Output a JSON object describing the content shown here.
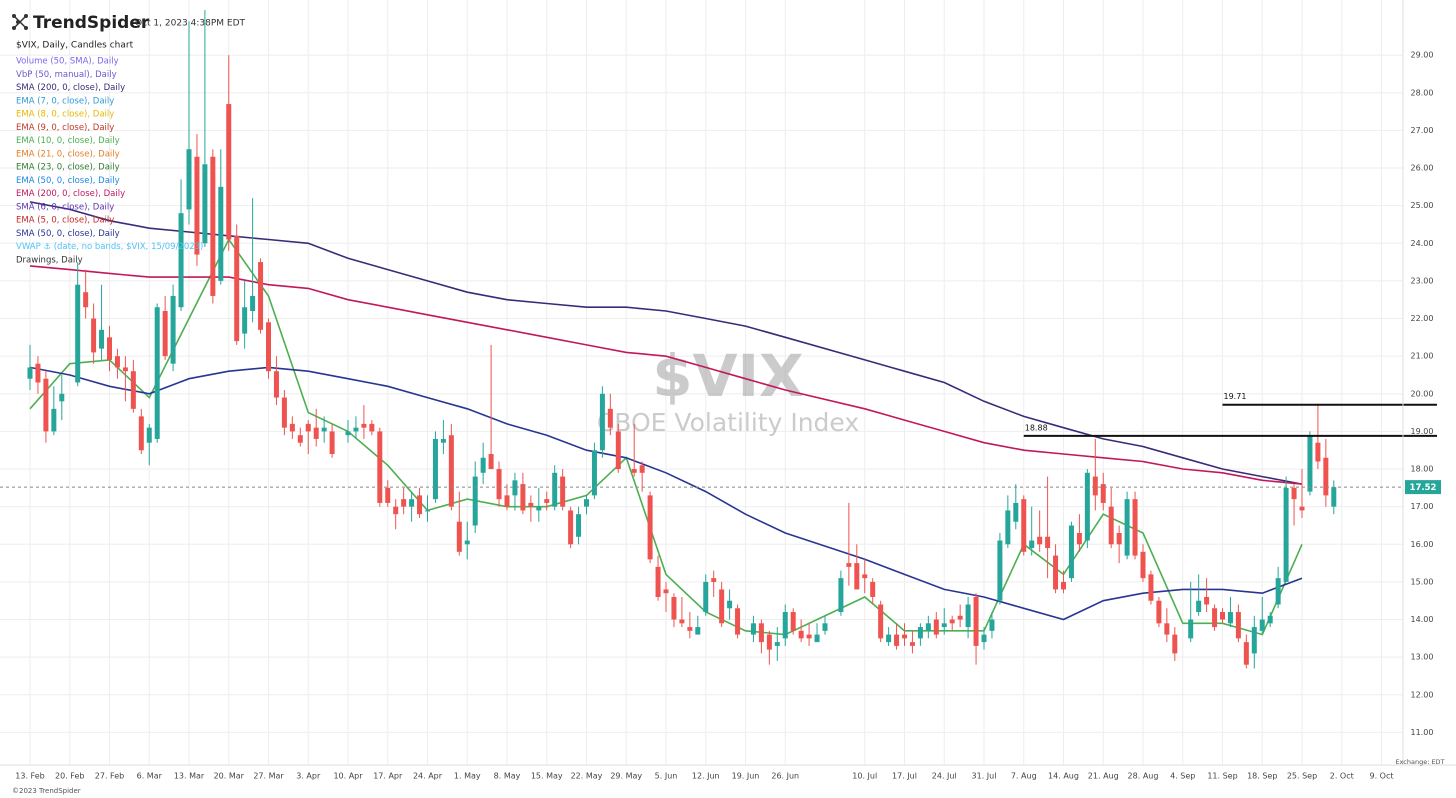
{
  "chart_data": {
    "type": "candlestick",
    "brand": "TrendSpider",
    "timestamp": "Oct 1, 2023 4:38PM EDT",
    "title": "$VIX, Daily, Candles chart",
    "watermark": "$VIX",
    "subtitle": "CBOE Volatility Index",
    "exchange": "Exchange: EDT",
    "copyright": "©2023 TrendSpider",
    "up_color": "#26a69a",
    "down_color": "#ef5350",
    "grid": true,
    "ylim": [
      10.4,
      30.2
    ],
    "yticks": [
      {
        "value": 11,
        "label": "11.00"
      },
      {
        "value": 12,
        "label": "12.00"
      },
      {
        "value": 13,
        "label": "13.00"
      },
      {
        "value": 14,
        "label": "14.00"
      },
      {
        "value": 15,
        "label": "15.00"
      },
      {
        "value": 16,
        "label": "16.00"
      },
      {
        "value": 17,
        "label": "17.00"
      },
      {
        "value": 18,
        "label": "18.00"
      },
      {
        "value": 19,
        "label": "19.00"
      },
      {
        "value": 20,
        "label": "20.00"
      },
      {
        "value": 21,
        "label": "21.00"
      },
      {
        "value": 22,
        "label": "22.00"
      },
      {
        "value": 23,
        "label": "23.00"
      },
      {
        "value": 24,
        "label": "24.00"
      },
      {
        "value": 25,
        "label": "25.00"
      },
      {
        "value": 26,
        "label": "26.00"
      },
      {
        "value": 27,
        "label": "27.00"
      },
      {
        "value": 28,
        "label": "28.00"
      },
      {
        "value": 29,
        "label": "29.00"
      }
    ],
    "last_price": 17.52,
    "hlines": [
      {
        "value": 18.88,
        "from": "7. Aug"
      },
      {
        "value": 19.71,
        "from": "11. Sep"
      }
    ],
    "categories": [
      "13. Feb",
      null,
      null,
      null,
      null,
      "20. Feb",
      null,
      null,
      null,
      null,
      "27. Feb",
      null,
      null,
      null,
      null,
      "6. Mar",
      null,
      null,
      null,
      null,
      "13. Mar",
      null,
      null,
      null,
      null,
      "20. Mar",
      null,
      null,
      null,
      null,
      "27. Mar",
      null,
      null,
      null,
      null,
      "3. Apr",
      null,
      null,
      null,
      null,
      "10. Apr",
      null,
      null,
      null,
      null,
      "17. Apr",
      null,
      null,
      null,
      null,
      "24. Apr",
      null,
      null,
      null,
      null,
      "1. May",
      null,
      null,
      null,
      null,
      "8. May",
      null,
      null,
      null,
      null,
      "15. May",
      null,
      null,
      null,
      null,
      "22. May",
      null,
      null,
      null,
      null,
      "29. May",
      null,
      null,
      null,
      null,
      "5. Jun",
      null,
      null,
      null,
      null,
      "12. Jun",
      null,
      null,
      null,
      null,
      "19. Jun",
      null,
      null,
      null,
      null,
      "26. Jun",
      null,
      null,
      null,
      null,
      null,
      null,
      null,
      null,
      null,
      "10. Jul",
      null,
      null,
      null,
      null,
      "17. Jul",
      null,
      null,
      null,
      null,
      "24. Jul",
      null,
      null,
      null,
      null,
      "31. Jul",
      null,
      null,
      null,
      null,
      "7. Aug",
      null,
      null,
      null,
      null,
      "14. Aug",
      null,
      null,
      null,
      null,
      "21. Aug",
      null,
      null,
      null,
      null,
      "28. Aug",
      null,
      null,
      null,
      null,
      "4. Sep",
      null,
      null,
      null,
      null,
      "11. Sep",
      null,
      null,
      null,
      null,
      "18. Sep",
      null,
      null,
      null,
      null,
      "25. Sep",
      null,
      null,
      null,
      null,
      "2. Oct",
      null,
      null,
      null,
      null,
      "9. Oct",
      null,
      null,
      null,
      null
    ],
    "ohlc": [
      [
        20.4,
        21.3,
        20.1,
        20.7
      ],
      [
        20.8,
        21.0,
        20.0,
        20.3
      ],
      [
        20.4,
        20.6,
        18.7,
        19.0
      ],
      [
        19.0,
        20.2,
        18.9,
        19.6
      ],
      [
        19.8,
        20.5,
        19.3,
        20.0
      ],
      null,
      [
        20.3,
        23.5,
        20.2,
        22.9
      ],
      [
        22.7,
        23.3,
        22.0,
        22.3
      ],
      [
        22.0,
        22.4,
        20.8,
        21.1
      ],
      [
        21.2,
        22.9,
        20.9,
        21.7
      ],
      [
        21.5,
        21.8,
        20.6,
        20.9
      ],
      [
        21.0,
        21.2,
        20.4,
        20.7
      ],
      [
        20.7,
        21.0,
        19.8,
        20.6
      ],
      [
        20.6,
        20.9,
        19.5,
        19.6
      ],
      [
        19.4,
        19.6,
        18.4,
        18.5
      ],
      [
        18.7,
        19.2,
        18.1,
        19.1
      ],
      [
        18.8,
        22.4,
        18.7,
        22.3
      ],
      [
        22.2,
        22.6,
        20.9,
        21.0
      ],
      [
        20.8,
        22.9,
        20.6,
        22.6
      ],
      [
        22.3,
        25.7,
        22.2,
        24.8
      ],
      [
        24.9,
        29.9,
        24.5,
        26.5
      ],
      [
        26.3,
        26.9,
        23.4,
        23.7
      ],
      [
        24.0,
        30.2,
        23.9,
        26.1
      ],
      [
        26.3,
        26.5,
        22.4,
        22.6
      ],
      [
        23.0,
        26.5,
        22.9,
        25.5
      ],
      [
        27.7,
        29.0,
        23.8,
        24.1
      ],
      [
        24.2,
        24.5,
        21.3,
        21.4
      ],
      [
        21.6,
        23.0,
        21.2,
        22.3
      ],
      [
        22.2,
        25.2,
        21.9,
        22.6
      ],
      [
        23.5,
        23.6,
        21.6,
        21.7
      ],
      [
        21.9,
        22.0,
        20.4,
        20.6
      ],
      [
        20.6,
        21.0,
        19.7,
        19.9
      ],
      [
        19.9,
        20.1,
        18.9,
        19.1
      ],
      [
        19.2,
        19.4,
        18.8,
        19.0
      ],
      [
        18.9,
        19.1,
        18.6,
        18.7
      ],
      [
        19.2,
        19.3,
        18.4,
        19.0
      ],
      [
        19.1,
        19.6,
        18.6,
        18.8
      ],
      [
        19.0,
        19.4,
        18.7,
        19.1
      ],
      [
        19.0,
        19.2,
        18.3,
        18.4
      ],
      null,
      [
        18.9,
        19.3,
        18.7,
        19.0
      ],
      [
        19.0,
        19.4,
        18.8,
        19.1
      ],
      [
        19.2,
        19.7,
        18.8,
        19.1
      ],
      [
        19.2,
        19.3,
        18.9,
        19.0
      ],
      [
        19.0,
        19.1,
        17.0,
        17.1
      ],
      [
        17.5,
        17.7,
        17.0,
        17.1
      ],
      [
        17.0,
        17.2,
        16.4,
        16.8
      ],
      [
        17.2,
        17.5,
        16.8,
        17.0
      ],
      [
        17.0,
        17.4,
        16.6,
        17.2
      ],
      [
        17.3,
        17.5,
        16.7,
        16.8
      ],
      [
        16.9,
        17.3,
        16.6,
        16.9
      ],
      [
        17.2,
        19.0,
        17.1,
        18.8
      ],
      [
        18.7,
        19.3,
        18.4,
        18.8
      ],
      [
        18.9,
        19.2,
        16.9,
        17.0
      ],
      [
        16.6,
        17.4,
        15.7,
        15.8
      ],
      [
        16.0,
        16.6,
        15.6,
        16.1
      ],
      [
        16.5,
        18.2,
        16.3,
        17.8
      ],
      [
        17.9,
        18.7,
        17.6,
        18.3
      ],
      [
        18.4,
        21.3,
        18.0,
        18.0
      ],
      [
        18.0,
        18.2,
        17.0,
        17.2
      ],
      [
        17.3,
        17.6,
        16.9,
        17.0
      ],
      [
        17.3,
        17.9,
        16.9,
        17.7
      ],
      [
        17.6,
        17.9,
        16.8,
        16.9
      ],
      [
        17.1,
        17.3,
        16.6,
        17.0
      ],
      [
        16.9,
        17.5,
        16.6,
        17.0
      ],
      [
        17.2,
        17.4,
        16.9,
        17.1
      ],
      [
        17.0,
        18.1,
        16.9,
        17.9
      ],
      [
        17.8,
        18.0,
        16.9,
        17.0
      ],
      [
        16.9,
        17.0,
        15.9,
        16.0
      ],
      [
        16.2,
        17.0,
        16.0,
        16.8
      ],
      [
        17.0,
        17.3,
        16.8,
        17.2
      ],
      [
        17.3,
        18.7,
        17.2,
        18.5
      ],
      [
        18.5,
        20.2,
        18.3,
        20.0
      ],
      [
        19.6,
        20.0,
        18.9,
        19.1
      ],
      [
        19.0,
        19.2,
        17.9,
        18.0
      ],
      null,
      [
        18.0,
        19.2,
        17.8,
        17.9
      ],
      [
        18.1,
        18.2,
        17.4,
        17.9
      ],
      [
        17.3,
        17.4,
        15.5,
        15.6
      ],
      [
        15.4,
        15.7,
        14.5,
        14.6
      ],
      [
        14.8,
        15.0,
        14.2,
        14.7
      ],
      [
        14.6,
        14.7,
        13.8,
        14.0
      ],
      [
        14.0,
        14.6,
        13.8,
        13.9
      ],
      [
        13.8,
        14.2,
        13.5,
        13.7
      ],
      [
        13.6,
        14.1,
        13.6,
        13.8
      ],
      [
        14.2,
        15.2,
        14.1,
        15.0
      ],
      [
        15.1,
        15.3,
        14.6,
        15.0
      ],
      [
        14.8,
        15.0,
        13.8,
        13.9
      ],
      [
        14.3,
        14.8,
        14.0,
        14.5
      ],
      [
        14.3,
        14.4,
        13.5,
        13.6
      ],
      null,
      [
        13.6,
        14.1,
        13.4,
        13.9
      ],
      [
        13.9,
        14.0,
        13.1,
        13.4
      ],
      [
        13.6,
        13.7,
        12.8,
        13.2
      ],
      [
        13.3,
        13.8,
        12.9,
        13.4
      ],
      [
        13.5,
        14.4,
        13.3,
        14.2
      ],
      [
        14.2,
        14.3,
        13.6,
        13.7
      ],
      [
        13.7,
        14.0,
        13.4,
        13.5
      ],
      [
        13.6,
        13.9,
        13.3,
        13.5
      ],
      [
        13.4,
        13.9,
        13.4,
        13.6
      ],
      [
        13.7,
        14.1,
        13.6,
        13.9
      ],
      null,
      [
        14.2,
        15.3,
        14.1,
        15.1
      ],
      [
        15.5,
        17.1,
        14.9,
        15.4
      ],
      [
        15.5,
        16.0,
        14.8,
        14.8
      ],
      [
        15.2,
        15.6,
        14.7,
        15.1
      ],
      [
        15.0,
        15.1,
        14.4,
        14.6
      ],
      [
        14.4,
        14.5,
        13.4,
        13.5
      ],
      [
        13.4,
        13.8,
        13.3,
        13.6
      ],
      [
        13.6,
        13.9,
        13.2,
        13.3
      ],
      [
        13.6,
        13.9,
        13.3,
        13.5
      ],
      [
        13.4,
        13.7,
        13.1,
        13.3
      ],
      [
        13.5,
        13.9,
        13.3,
        13.8
      ],
      [
        13.7,
        14.1,
        13.5,
        13.9
      ],
      [
        14.0,
        14.2,
        13.5,
        13.6
      ],
      [
        13.8,
        14.3,
        13.6,
        13.9
      ],
      [
        14.0,
        14.1,
        13.7,
        13.9
      ],
      [
        14.1,
        14.4,
        13.8,
        14.0
      ],
      [
        13.8,
        14.6,
        13.5,
        14.4
      ],
      [
        14.6,
        14.7,
        12.8,
        13.3
      ],
      [
        13.4,
        13.8,
        13.2,
        13.6
      ],
      [
        13.7,
        14.2,
        13.5,
        14.0
      ],
      [
        14.5,
        16.3,
        14.4,
        16.1
      ],
      [
        16.0,
        17.3,
        15.9,
        16.9
      ],
      [
        16.6,
        17.6,
        16.4,
        17.1
      ],
      [
        17.2,
        17.3,
        15.7,
        15.8
      ],
      [
        15.9,
        17.0,
        15.7,
        16.1
      ],
      [
        16.2,
        16.9,
        15.8,
        16.0
      ],
      [
        16.2,
        17.8,
        15.1,
        15.9
      ],
      [
        15.7,
        16.0,
        14.7,
        14.8
      ],
      [
        15.0,
        15.3,
        14.7,
        14.8
      ],
      [
        15.1,
        16.6,
        15.0,
        16.5
      ],
      [
        16.3,
        16.8,
        15.8,
        16.0
      ],
      [
        16.1,
        18.0,
        15.9,
        17.9
      ],
      [
        17.8,
        18.8,
        16.9,
        17.3
      ],
      [
        17.6,
        17.9,
        16.9,
        17.1
      ],
      [
        17.0,
        17.5,
        15.9,
        16.0
      ],
      [
        16.3,
        16.5,
        15.5,
        16.0
      ],
      [
        15.7,
        17.4,
        15.6,
        17.2
      ],
      [
        17.2,
        17.4,
        15.6,
        15.7
      ],
      [
        15.8,
        16.0,
        15.0,
        15.1
      ],
      [
        15.2,
        15.3,
        14.4,
        14.5
      ],
      [
        14.5,
        14.6,
        13.8,
        13.9
      ],
      [
        13.9,
        14.3,
        13.4,
        13.6
      ],
      [
        13.6,
        13.8,
        12.9,
        13.1
      ],
      null,
      [
        13.5,
        15.0,
        13.4,
        14.0
      ],
      [
        14.2,
        15.2,
        14.1,
        14.5
      ],
      [
        14.6,
        15.1,
        14.2,
        14.4
      ],
      [
        14.3,
        14.4,
        13.7,
        13.8
      ],
      [
        14.2,
        14.3,
        13.9,
        14.0
      ],
      [
        13.9,
        14.6,
        13.8,
        14.2
      ],
      [
        14.2,
        14.4,
        13.4,
        13.5
      ],
      [
        13.4,
        13.6,
        12.7,
        12.8
      ],
      [
        13.1,
        14.1,
        12.7,
        13.8
      ],
      [
        13.7,
        14.6,
        13.6,
        14.0
      ],
      [
        13.9,
        14.2,
        13.8,
        14.1
      ],
      [
        14.4,
        15.4,
        14.3,
        15.1
      ],
      [
        15.0,
        17.8,
        15.0,
        17.5
      ],
      [
        17.5,
        17.6,
        16.5,
        17.2
      ],
      [
        17.0,
        18.0,
        16.7,
        16.9
      ],
      [
        17.4,
        19.0,
        17.3,
        18.9
      ],
      [
        18.7,
        19.7,
        18.0,
        18.2
      ],
      [
        18.3,
        18.8,
        17.0,
        17.3
      ],
      [
        17.0,
        17.7,
        16.8,
        17.52
      ],
      null,
      null,
      null,
      null,
      null,
      null,
      null,
      null,
      null,
      null
    ],
    "line_x": [
      "13. Feb",
      "20. Feb",
      "27. Feb",
      "6. Mar",
      "13. Mar",
      "20. Mar",
      "27. Mar",
      "3. Apr",
      "10. Apr",
      "17. Apr",
      "24. Apr",
      "1. May",
      "8. May",
      "15. May",
      "22. May",
      "29. May",
      "5. Jun",
      "12. Jun",
      "19. Jun",
      "26. Jun",
      "10. Jul",
      "17. Jul",
      "24. Jul",
      "31. Jul",
      "7. Aug",
      "14. Aug",
      "21. Aug",
      "28. Aug",
      "4. Sep",
      "11. Sep",
      "18. Sep",
      "25. Sep"
    ],
    "indicators": [
      {
        "name": "Volume (50, SMA), Daily",
        "color": "#7b68ee"
      },
      {
        "name": "VbP (50, manual), Daily",
        "color": "#6a5acd"
      },
      {
        "name": "SMA (200, 0, close), Daily",
        "color": "#3b2a7a",
        "values": [
          25.1,
          24.9,
          24.6,
          24.4,
          24.3,
          24.2,
          24.1,
          24.0,
          23.6,
          23.3,
          23.0,
          22.7,
          22.5,
          22.4,
          22.3,
          22.3,
          22.2,
          22.0,
          21.8,
          21.5,
          20.9,
          20.6,
          20.3,
          19.8,
          19.4,
          19.1,
          18.8,
          18.6,
          18.3,
          18.0,
          17.8,
          17.6
        ]
      },
      {
        "name": "EMA (7, 0, close), Daily",
        "color": "#2e9bd6"
      },
      {
        "name": "EMA (8, 0, close), Daily",
        "color": "#e6b800"
      },
      {
        "name": "EMA (9, 0, close), Daily",
        "color": "#c0392b"
      },
      {
        "name": "EMA (10, 0, close), Daily",
        "color": "#4caf50",
        "values": [
          19.6,
          20.8,
          20.9,
          19.9,
          22.0,
          24.1,
          22.6,
          19.5,
          19.0,
          18.1,
          16.9,
          17.2,
          17.0,
          17.0,
          17.3,
          18.3,
          15.2,
          14.2,
          13.7,
          13.6,
          14.6,
          13.7,
          13.7,
          13.7,
          16.0,
          15.2,
          16.8,
          16.3,
          13.9,
          13.9,
          13.6,
          16.0
        ]
      },
      {
        "name": "EMA (21, 0, close), Daily",
        "color": "#e67e22"
      },
      {
        "name": "EMA (23, 0, close), Daily",
        "color": "#2e7d32"
      },
      {
        "name": "EMA (50, 0, close), Daily",
        "color": "#1e88e5"
      },
      {
        "name": "EMA (200, 0, close), Daily",
        "color": "#c2185b",
        "values": [
          23.4,
          23.3,
          23.2,
          23.1,
          23.1,
          23.1,
          22.9,
          22.8,
          22.5,
          22.3,
          22.1,
          21.9,
          21.7,
          21.5,
          21.3,
          21.1,
          21.0,
          20.7,
          20.4,
          20.1,
          19.6,
          19.3,
          19.0,
          18.7,
          18.5,
          18.4,
          18.3,
          18.2,
          18.0,
          17.9,
          17.7,
          17.6
        ]
      },
      {
        "name": "SMA (6, 0, close), Daily",
        "color": "#5e35b1"
      },
      {
        "name": "EMA (5, 0, close), Daily",
        "color": "#c62828"
      },
      {
        "name": "SMA (50, 0, close), Daily",
        "color": "#283593",
        "values": [
          20.7,
          20.5,
          20.2,
          20.0,
          20.4,
          20.6,
          20.7,
          20.6,
          20.4,
          20.2,
          19.9,
          19.6,
          19.2,
          18.9,
          18.5,
          18.3,
          17.9,
          17.4,
          16.8,
          16.3,
          15.6,
          15.2,
          14.8,
          14.6,
          14.3,
          14.0,
          14.5,
          14.7,
          14.8,
          14.8,
          14.7,
          15.1
        ]
      },
      {
        "name": "VWAP ⚓ (date, no bands, $VIX, 15/09/2023)",
        "color": "#4fc3f7"
      },
      {
        "name": "Drawings, Daily",
        "color": "#333333"
      }
    ]
  }
}
